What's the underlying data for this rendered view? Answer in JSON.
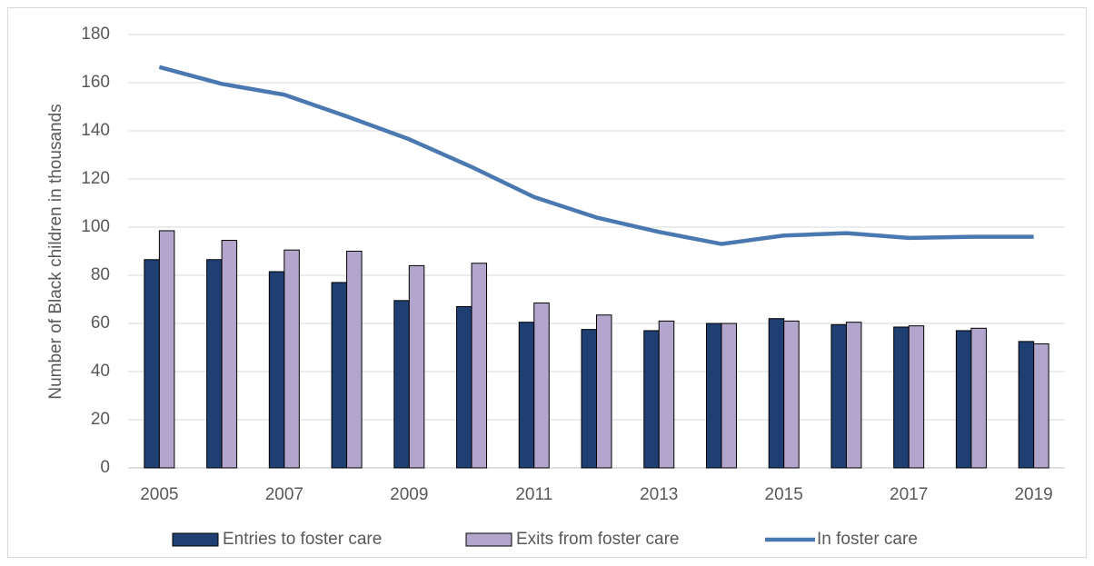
{
  "chart_data": {
    "type": "bar-line",
    "y_label": "Number of Black children in thousands",
    "categories": [
      "2005",
      null,
      "2007",
      null,
      "2009",
      null,
      "2011",
      null,
      "2013",
      null,
      "2015",
      null,
      "2017",
      null,
      "2019"
    ],
    "series": [
      {
        "name": "Entries to foster care",
        "type": "bar",
        "color": "#1f3f73",
        "values": [
          86.5,
          86.5,
          81.5,
          77,
          69.5,
          67,
          60.5,
          57.5,
          57,
          60,
          62,
          59.5,
          58.5,
          57,
          52.5
        ]
      },
      {
        "name": "Exits from foster care",
        "type": "bar",
        "color": "#b3a6cc",
        "values": [
          98.5,
          94.5,
          90.5,
          90,
          84,
          85,
          68.5,
          63.5,
          61,
          60,
          61,
          60.5,
          59,
          58,
          51.5
        ]
      },
      {
        "name": "In foster care",
        "type": "line",
        "color": "#4a78b0",
        "values": [
          166.5,
          159.5,
          155,
          146,
          136.5,
          125,
          112.5,
          104,
          98,
          93,
          96.5,
          97.5,
          95.5,
          96,
          96
        ]
      }
    ],
    "ylim": [
      0,
      180
    ],
    "yticks": [
      0,
      20,
      40,
      60,
      80,
      100,
      120,
      140,
      160,
      180
    ],
    "grid": true,
    "legend": "bottom"
  }
}
